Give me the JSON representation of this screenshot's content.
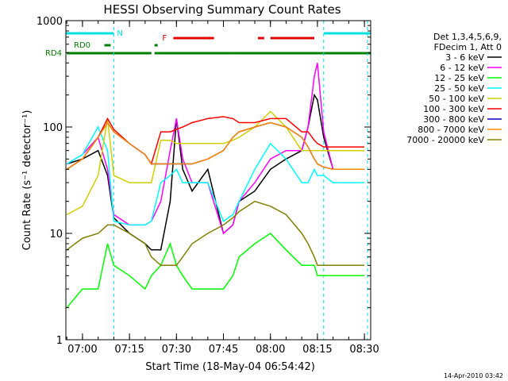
{
  "chart_data": {
    "type": "line",
    "title": "HESSI Observing Summary Count Rates",
    "xlabel": "Start Time (18-May-04 06:54:42)",
    "ylabel": "Count Rate (s⁻¹ detector⁻¹)",
    "y_scale": "log",
    "ylim": [
      1,
      1000
    ],
    "xlim": [
      "06:54:42",
      "08:32:00"
    ],
    "x_ticks": [
      "07:00",
      "07:15",
      "07:30",
      "07:45",
      "08:00",
      "08:15",
      "08:30"
    ],
    "y_ticks": [
      "1",
      "10",
      "100",
      "1000"
    ],
    "grid": false,
    "legend_position": "right",
    "legend_header": [
      "Det 1,3,4,5,6,9,",
      "FDecim 1, Att 0"
    ],
    "footer_date": "14-Apr-2010 03:42",
    "flags": {
      "N": {
        "label": "N",
        "color": "#00e0e0",
        "segments": [
          [
            "06:54:42",
            "07:10"
          ],
          [
            "08:17",
            "08:32"
          ]
        ]
      },
      "F": {
        "label": "F",
        "color": "#e00000",
        "segments": [
          [
            "07:29",
            "07:42"
          ],
          [
            "07:56",
            "07:58"
          ],
          [
            "08:00",
            "08:14"
          ]
        ]
      },
      "RD0": {
        "label": "RD0",
        "color": "#008000",
        "segments": [
          [
            "07:07",
            "07:09"
          ],
          [
            "07:23",
            "07:24"
          ]
        ]
      },
      "RD4": {
        "label": "RD4",
        "color": "#008000",
        "segments": [
          [
            "06:55",
            "07:22"
          ],
          [
            "07:23",
            "07:47"
          ],
          [
            "07:47",
            "08:13"
          ],
          [
            "08:13",
            "08:32"
          ]
        ]
      }
    },
    "vlines": [
      {
        "time": "06:54:42",
        "color": "#00e0e0"
      },
      {
        "time": "07:10",
        "color": "#00e0e0"
      },
      {
        "time": "08:17",
        "color": "#00e0e0"
      },
      {
        "time": "08:31",
        "color": "#00e0e0"
      }
    ],
    "x": [
      "06:55",
      "07:00",
      "07:05",
      "07:08",
      "07:10",
      "07:15",
      "07:20",
      "07:22",
      "07:25",
      "07:28",
      "07:30",
      "07:32",
      "07:35",
      "07:40",
      "07:45",
      "07:48",
      "07:50",
      "07:55",
      "08:00",
      "08:05",
      "08:10",
      "08:12",
      "08:14",
      "08:15",
      "08:17",
      "08:20",
      "08:25",
      "08:30"
    ],
    "series": [
      {
        "name": "3 - 6 keV",
        "color": "#000000",
        "values": [
          45,
          50,
          60,
          35,
          14,
          10,
          8,
          7,
          7,
          20,
          120,
          40,
          25,
          40,
          10,
          12,
          20,
          25,
          40,
          50,
          60,
          100,
          200,
          180,
          80,
          40,
          40,
          40
        ]
      },
      {
        "name": "6 - 12 keV",
        "color": "#ff00ff",
        "values": [
          45,
          55,
          80,
          40,
          15,
          12,
          12,
          13,
          20,
          60,
          120,
          50,
          30,
          30,
          10,
          12,
          20,
          30,
          50,
          60,
          60,
          100,
          300,
          400,
          90,
          40,
          40,
          40
        ]
      },
      {
        "name": "12 - 25 keV",
        "color": "#00ff00",
        "values": [
          2,
          3,
          3,
          8,
          5,
          4,
          3,
          4,
          5,
          8,
          5,
          4,
          3,
          3,
          3,
          4,
          6,
          8,
          10,
          7,
          5,
          5,
          5,
          4,
          4,
          4,
          4,
          4
        ]
      },
      {
        "name": "25 - 50 keV",
        "color": "#00ffff",
        "values": [
          45,
          55,
          100,
          60,
          13,
          12,
          12,
          13,
          30,
          35,
          40,
          30,
          30,
          30,
          13,
          15,
          20,
          40,
          70,
          50,
          30,
          30,
          40,
          35,
          35,
          30,
          30,
          30
        ]
      },
      {
        "name": "50 - 100 keV",
        "color": "#d0d000",
        "values": [
          15,
          18,
          35,
          120,
          35,
          30,
          30,
          30,
          75,
          75,
          70,
          70,
          70,
          70,
          70,
          75,
          80,
          100,
          140,
          100,
          60,
          60,
          60,
          60,
          60,
          60,
          60,
          60
        ]
      },
      {
        "name": "100 - 300 keV",
        "color": "#ff0000",
        "values": [
          40,
          50,
          80,
          120,
          95,
          70,
          55,
          45,
          90,
          90,
          95,
          100,
          110,
          120,
          125,
          120,
          110,
          110,
          120,
          120,
          90,
          90,
          75,
          70,
          65,
          65,
          65,
          65
        ]
      },
      {
        "name": "300 - 800 keV",
        "color": "#0000c0",
        "values": [
          40,
          50,
          80,
          110,
          90,
          70,
          55,
          45,
          45,
          45,
          45,
          45,
          45,
          50,
          60,
          80,
          90,
          100,
          110,
          100,
          80,
          65,
          50,
          45,
          42,
          40,
          40,
          40
        ]
      },
      {
        "name": "800 - 7000 keV",
        "color": "#ff8c00",
        "values": [
          40,
          50,
          80,
          110,
          90,
          70,
          55,
          45,
          45,
          45,
          45,
          45,
          45,
          50,
          60,
          80,
          90,
          100,
          110,
          100,
          80,
          65,
          50,
          45,
          42,
          40,
          40,
          40
        ]
      },
      {
        "name": "7000 - 20000 keV",
        "color": "#808000",
        "values": [
          7,
          9,
          10,
          12,
          12,
          10,
          8,
          6,
          5,
          5,
          5,
          6,
          8,
          10,
          12,
          14,
          16,
          20,
          18,
          15,
          10,
          8,
          6,
          5,
          5,
          5,
          5,
          5
        ]
      }
    ]
  }
}
